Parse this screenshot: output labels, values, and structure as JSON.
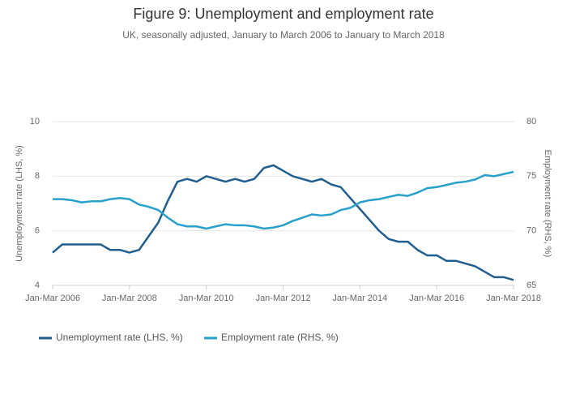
{
  "chart_data": {
    "type": "line",
    "title": "Figure 9: Unemployment and employment rate",
    "subtitle": "UK, seasonally adjusted, January to March 2006 to January to March 2018",
    "ylabel": "Unemployment rate (LHS, %)",
    "y2label": "Employment rate (RHS, %)",
    "categories": [
      "Jan-Mar 2006",
      null,
      null,
      null,
      null,
      null,
      null,
      null,
      "Jan-Mar 2008",
      null,
      null,
      null,
      null,
      null,
      null,
      null,
      "Jan-Mar 2010",
      null,
      null,
      null,
      null,
      null,
      null,
      null,
      "Jan-Mar 2012",
      null,
      null,
      null,
      null,
      null,
      null,
      null,
      "Jan-Mar 2014",
      null,
      null,
      null,
      null,
      null,
      null,
      null,
      "Jan-Mar 2016",
      null,
      null,
      null,
      null,
      null,
      null,
      null,
      "Jan-Mar 2018"
    ],
    "series": [
      {
        "name": "Unemployment rate (LHS, %)",
        "color": "#1f5e8f",
        "values": [
          5.2,
          5.5,
          5.5,
          5.5,
          5.5,
          5.5,
          5.3,
          5.3,
          5.2,
          5.3,
          5.8,
          6.3,
          7.1,
          7.8,
          7.9,
          7.8,
          8.0,
          7.9,
          7.8,
          7.9,
          7.8,
          7.9,
          8.3,
          8.4,
          8.2,
          8.0,
          7.9,
          7.8,
          7.9,
          7.7,
          7.6,
          7.2,
          6.8,
          6.4,
          6.0,
          5.7,
          5.6,
          5.6,
          5.3,
          5.1,
          5.1,
          4.9,
          4.9,
          4.8,
          4.7,
          4.5,
          4.3,
          4.3,
          4.2
        ]
      },
      {
        "name": "Employment rate (RHS, %)",
        "color": "#27a0cc",
        "axis": "y2",
        "values": [
          72.9,
          72.9,
          72.8,
          72.6,
          72.7,
          72.7,
          72.9,
          73.0,
          72.9,
          72.4,
          72.2,
          71.9,
          71.2,
          70.6,
          70.4,
          70.4,
          70.2,
          70.4,
          70.6,
          70.5,
          70.5,
          70.4,
          70.2,
          70.3,
          70.5,
          70.9,
          71.2,
          71.5,
          71.4,
          71.5,
          71.9,
          72.1,
          72.6,
          72.8,
          72.9,
          73.1,
          73.3,
          73.2,
          73.5,
          73.9,
          74.0,
          74.2,
          74.4,
          74.5,
          74.7,
          75.1,
          75.0,
          75.2,
          75.4
        ]
      }
    ],
    "ylim": [
      4,
      10
    ],
    "yticks": [
      4,
      6,
      8,
      10
    ],
    "y2lim": [
      65,
      80
    ],
    "y2ticks": [
      65,
      70,
      75,
      80
    ],
    "grid": true,
    "legend": "bottom-left"
  }
}
